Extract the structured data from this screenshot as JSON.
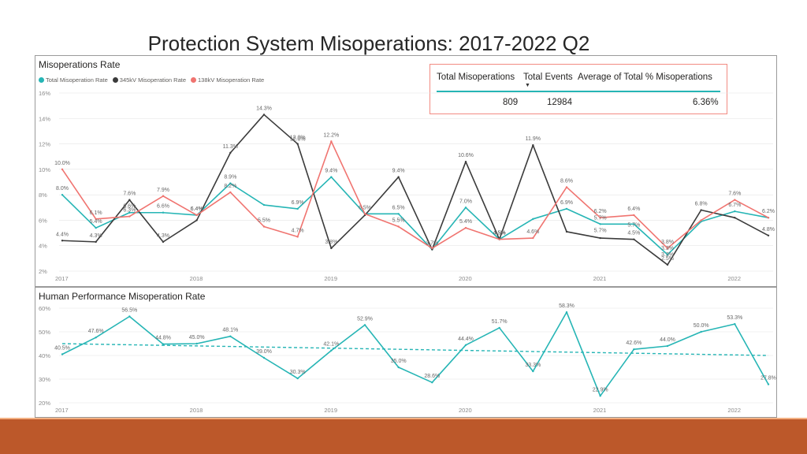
{
  "slide": {
    "title": "Protection System Misoperations:  2017-2022 Q2"
  },
  "kpi": {
    "headers": [
      "Total Misoperations",
      "Total Events",
      "Average of Total % Misoperations"
    ],
    "values": [
      "809",
      "12984",
      "6.36%"
    ]
  },
  "colors": {
    "teal": "#26b5b5",
    "dark": "#3b3b3b",
    "salmon": "#f07470",
    "grid": "#e6e6e6",
    "tick": "#8a8a8a",
    "accent_bar": "#bc582a"
  },
  "chart_data": [
    {
      "type": "line",
      "title": "Misoperations Rate",
      "legend_position": "top-left",
      "ylim": [
        2,
        16
      ],
      "yticks": [
        "2%",
        "4%",
        "6%",
        "8%",
        "10%",
        "12%",
        "14%",
        "16%"
      ],
      "ytick_values": [
        2,
        4,
        6,
        8,
        10,
        12,
        14,
        16
      ],
      "xtick_labels": [
        "2017",
        "2018",
        "2019",
        "2020",
        "2021",
        "2022"
      ],
      "xtick_index": [
        0,
        4,
        8,
        12,
        16,
        20
      ],
      "n_points": 22,
      "series": [
        {
          "name": "Total Misoperation Rate",
          "color": "#26b5b5",
          "values": [
            8.0,
            5.4,
            6.6,
            6.6,
            6.4,
            8.9,
            7.2,
            6.9,
            9.4,
            6.5,
            6.5,
            3.7,
            7.0,
            4.5,
            6.1,
            6.9,
            5.7,
            5.7,
            3.3,
            5.9,
            6.7,
            6.2
          ],
          "labels": [
            "8.0%",
            "5.4%",
            "6.6%",
            "6.6%",
            "6.4%",
            "8.9%",
            "",
            "6.9%",
            "9.4%",
            "6.5%",
            "6.5%",
            "",
            "7.0%",
            "4.5%",
            "",
            "6.9%",
            "5.7%",
            "",
            "3.3%",
            "",
            "6.7%",
            ""
          ]
        },
        {
          "name": "345kV Misoperation Rate",
          "color": "#3b3b3b",
          "values": [
            4.4,
            4.3,
            7.6,
            4.3,
            6.0,
            11.3,
            14.3,
            12.0,
            3.8,
            6.4,
            9.4,
            3.7,
            10.6,
            4.5,
            11.9,
            5.1,
            4.6,
            4.5,
            2.5,
            6.8,
            6.2,
            4.8
          ],
          "labels": [
            "4.4%",
            "4.3%",
            "7.6%",
            "4.3%",
            "",
            "11.3%",
            "14.3%",
            "12.0%",
            "3.8%",
            "",
            "9.4%",
            "3.7%",
            "10.6%",
            "4.5%",
            "11.9%",
            "",
            "",
            "4.5%",
            "2.5%",
            "6.8%",
            "",
            "4.8%"
          ]
        },
        {
          "name": "138kV Misoperation Rate",
          "color": "#f07470",
          "values": [
            10.0,
            6.1,
            6.3,
            7.9,
            6.4,
            8.2,
            5.5,
            4.7,
            12.2,
            6.5,
            5.5,
            3.8,
            5.4,
            4.5,
            4.6,
            8.6,
            6.2,
            6.4,
            3.8,
            6.0,
            7.6,
            6.2
          ],
          "labels": [
            "10.0%",
            "6.1%",
            "6.3%",
            "7.9%",
            "6.4%",
            "8.2%",
            "5.5%",
            "4.7%",
            "12.2%",
            "",
            "5.5%",
            "",
            "5.4%",
            "4.5%",
            "4.6%",
            "8.6%",
            "6.2%",
            "6.4%",
            "3.8%",
            "",
            "7.6%",
            "6.2%"
          ]
        }
      ],
      "extra_labels": [
        {
          "index": 7,
          "value": 12.0,
          "text": "12.0%",
          "color": "#3b3b3b",
          "dy": -4
        },
        {
          "index": 16,
          "value": 5.7,
          "text": "5.7%",
          "color": "#26b5b5",
          "dy": 10
        },
        {
          "index": 17,
          "value": 5.7,
          "text": "5.7%",
          "color": "#f07470",
          "dy": 3
        },
        {
          "index": 18,
          "value": 3.3,
          "text": "3.3%",
          "color": "#3b3b3b",
          "dy": 2
        }
      ]
    },
    {
      "type": "line",
      "title": "Human Performance Misoperation Rate",
      "ylim": [
        20,
        60
      ],
      "yticks": [
        "20%",
        "30%",
        "40%",
        "50%",
        "60%"
      ],
      "ytick_values": [
        20,
        30,
        40,
        50,
        60
      ],
      "xtick_labels": [
        "2017",
        "2018",
        "2019",
        "2020",
        "2021",
        "2022"
      ],
      "xtick_index": [
        0,
        4,
        8,
        12,
        16,
        20
      ],
      "n_points": 22,
      "trendline": {
        "start": 45.0,
        "end": 40.0,
        "color": "#26b5b5",
        "dashed": true
      },
      "series": [
        {
          "name": "",
          "color": "#26b5b5",
          "values": [
            40.5,
            47.6,
            56.5,
            44.8,
            45.0,
            48.1,
            39.0,
            30.3,
            42.1,
            52.9,
            35.0,
            28.6,
            44.4,
            51.7,
            33.3,
            58.3,
            22.9,
            42.6,
            44.0,
            50.0,
            53.3,
            27.8
          ],
          "labels": [
            "40.5%",
            "47.6%",
            "56.5%",
            "44.8%",
            "45.0%",
            "48.1%",
            "39.0%",
            "30.3%",
            "42.1%",
            "52.9%",
            "35.0%",
            "28.6%",
            "44.4%",
            "51.7%",
            "33.3%",
            "58.3%",
            "22.9%",
            "42.6%",
            "44.0%",
            "50.0%",
            "53.3%",
            "27.8%"
          ]
        }
      ]
    }
  ]
}
